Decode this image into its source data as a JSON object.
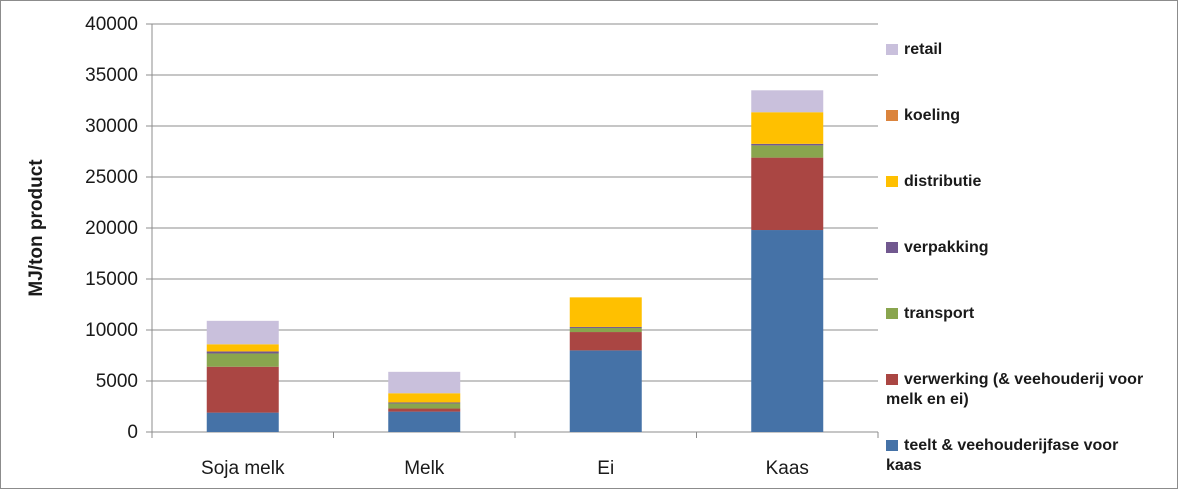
{
  "chart_data": {
    "type": "bar",
    "stacked": true,
    "ylabel": "MJ/ton product",
    "ylim": [
      0,
      40000
    ],
    "yticks": [
      0,
      5000,
      10000,
      15000,
      20000,
      25000,
      30000,
      35000,
      40000
    ],
    "grid": true,
    "legend_position": "right",
    "categories": [
      "Soja melk",
      "Melk",
      "Ei",
      "Kaas"
    ],
    "series": [
      {
        "name": "teelt & veehouderijfase voor kaas",
        "color": "#4572A7",
        "values": [
          1900,
          2000,
          8000,
          19800
        ]
      },
      {
        "name": "verwerking (& veehouderij voor melk en ei)",
        "color": "#AA4643",
        "values": [
          4500,
          300,
          1800,
          7100
        ]
      },
      {
        "name": "transport",
        "color": "#89A54E",
        "values": [
          1300,
          500,
          400,
          1200
        ]
      },
      {
        "name": "verpakking",
        "color": "#71588F",
        "values": [
          200,
          100,
          100,
          150
        ]
      },
      {
        "name": "distributie",
        "color": "#FFC000",
        "values": [
          700,
          900,
          2900,
          3100
        ]
      },
      {
        "name": "koeling",
        "color": "#DB843D",
        "values": [
          0,
          0,
          0,
          0
        ]
      },
      {
        "name": "retail",
        "color": "#C9C0DC",
        "values": [
          2300,
          2100,
          0,
          2150
        ]
      }
    ],
    "legend_order": [
      "retail",
      "koeling",
      "distributie",
      "verpakking",
      "transport",
      "verwerking (& veehouderij voor melk en ei)",
      "teelt & veehouderijfase voor kaas"
    ]
  }
}
